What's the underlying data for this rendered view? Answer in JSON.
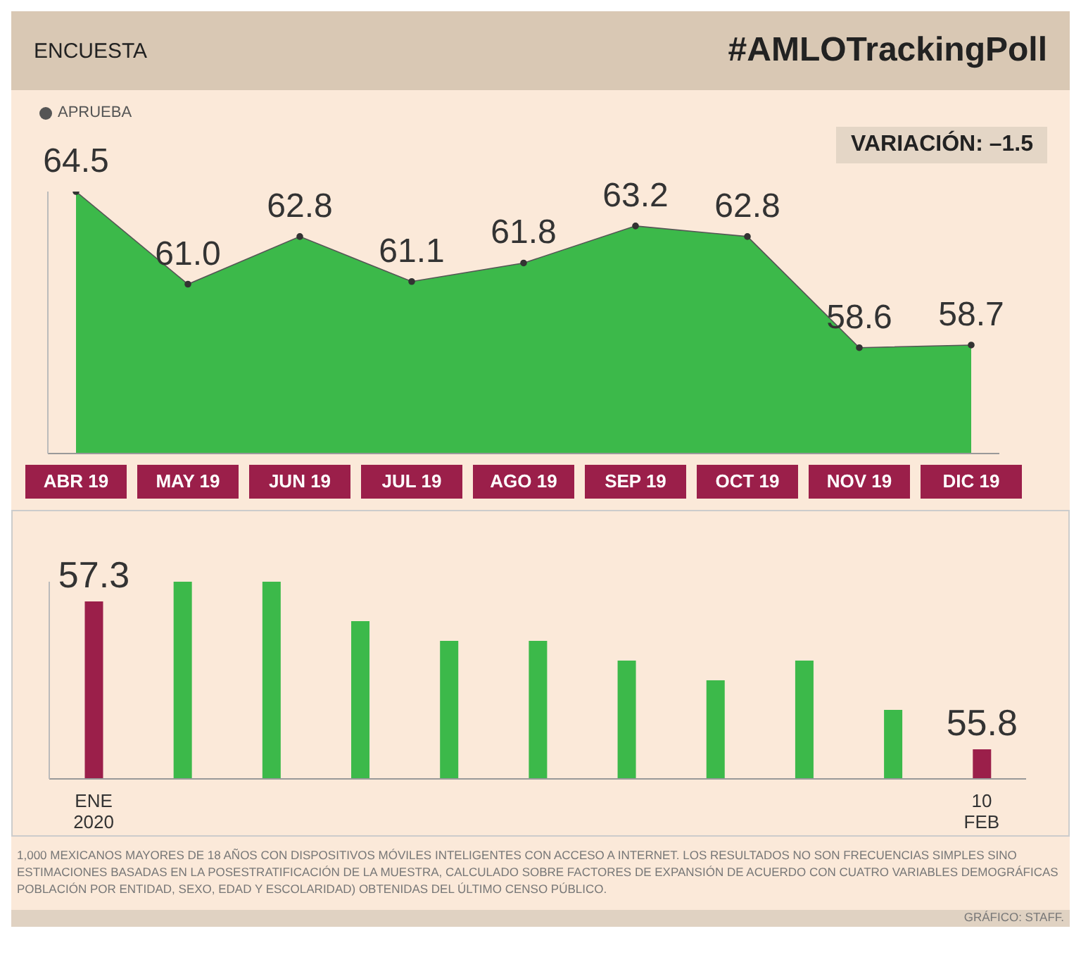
{
  "chart_data": [
    {
      "type": "area",
      "title": "#AMLOTrackingPoll",
      "subtitle": "ENCUESTA",
      "categories": [
        "ABR 19",
        "MAY 19",
        "JUN 19",
        "JUL 19",
        "AGO 19",
        "SEP 19",
        "OCT 19",
        "NOV 19",
        "DIC 19"
      ],
      "series": [
        {
          "name": "APRUEBA",
          "color": "#3cb94a",
          "values": [
            64.5,
            61.0,
            62.8,
            61.1,
            61.8,
            63.2,
            62.8,
            58.6,
            58.7
          ],
          "value_labels": [
            "64.5",
            "61.0",
            "62.8",
            "61.1",
            "61.8",
            "63.2",
            "62.8",
            "58.6",
            "58.7"
          ]
        }
      ],
      "ylim": [
        54.6,
        64.5
      ],
      "legend": "top left",
      "annotations": [
        "VARIACIÓN: –1.5"
      ]
    },
    {
      "type": "bar",
      "categories": [
        "ENE 2020",
        null,
        null,
        null,
        null,
        null,
        null,
        null,
        null,
        null,
        "10 FEB"
      ],
      "values": [
        57.3,
        57.5,
        57.5,
        57.1,
        56.9,
        56.9,
        56.7,
        56.5,
        56.7,
        56.2,
        55.8
      ],
      "ylim": [
        55.5,
        57.5
      ],
      "colors": [
        "#9b1f4a",
        "#3cb94a",
        "#3cb94a",
        "#3cb94a",
        "#3cb94a",
        "#3cb94a",
        "#3cb94a",
        "#3cb94a",
        "#3cb94a",
        "#3cb94a",
        "#9b1f4a"
      ],
      "value_labels": [
        "57.3",
        null,
        null,
        null,
        null,
        null,
        null,
        null,
        null,
        null,
        "55.8"
      ],
      "annotations": [
        "1,000 MEXICANOS MAYORES DE 18 AÑOS CON DISPOSITIVOS MÓVILES INTELIGENTES CON ACCESO A INTERNET. LOS RESULTADOS NO SON FRECUENCIAS SIMPLES SINO ESTIMACIONES BASADAS EN LA POSESTRATIFICACIÓN DE LA MUESTRA, CALCULADO SOBRE FACTORES DE EXPANSIÓN DE ACUERDO CON CUATRO VARIABLES DEMOGRÁFICAS POBLACIÓN POR ENTIDAD, SEXO, EDAD Y ESCOLARIDAD) OBTENIDAS DEL ÚLTIMO CENSO PÚBLICO.",
        "GRÁFICO: STAFF."
      ]
    }
  ]
}
